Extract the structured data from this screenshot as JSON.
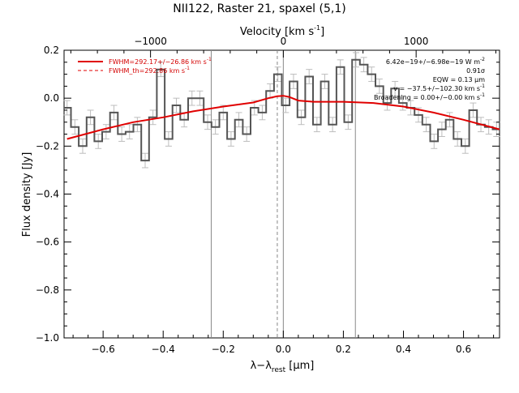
{
  "chart_data": {
    "type": "line",
    "title": "NII122, Raster 21, spaxel (5,1)",
    "xlabel": "λ−λ",
    "xlabel_sub": "rest",
    "xlabel_unit": "[μm]",
    "ylabel": "Flux density [Jy]",
    "top_axis_label": "Velocity [km s",
    "top_axis_label_sup": "-1",
    "top_axis_label_end": "]",
    "xlim": [
      -0.73,
      0.72
    ],
    "ylim": [
      -1.0,
      0.2
    ],
    "top_xlim": [
      -1651,
      1628
    ],
    "x_ticks": [
      -0.6,
      -0.4,
      -0.2,
      0.0,
      0.2,
      0.4,
      0.6
    ],
    "x_tick_labels": [
      "−0.6",
      "−0.4",
      "−0.2",
      "0.0",
      "0.2",
      "0.4",
      "0.6"
    ],
    "y_ticks": [
      -1.0,
      -0.8,
      -0.6,
      -0.4,
      -0.2,
      0.0,
      0.2
    ],
    "y_tick_labels": [
      "−1.0",
      "−0.8",
      "−0.6",
      "−0.4",
      "−0.2",
      "0.0",
      "0.2"
    ],
    "top_ticks": [
      -1000,
      0,
      1000
    ],
    "top_tick_labels": [
      "−1000",
      "0",
      "1000"
    ],
    "vertical_lines": [
      -0.24,
      -0.02,
      0.0,
      0.24
    ],
    "legend": {
      "position": "top-left",
      "entries": [
        {
          "label": "FWHM=292.17+/−26.86 km s",
          "sup": "-1",
          "style": "solid",
          "color": "#d40000"
        },
        {
          "label": "FWHM_th=292.86 km s",
          "sup": "-1",
          "style": "dashed",
          "color": "#d40000"
        }
      ]
    },
    "annotations": [
      {
        "text": "6.42e−19+/−6.98e−19 W m",
        "sup": "-2"
      },
      {
        "text": "0.91σ",
        "sup": ""
      },
      {
        "text": "EQW = 0.13 μm",
        "sup": ""
      },
      {
        "text": "v = −37.5+/−102.30 km s",
        "sup": "-1"
      },
      {
        "text": "Broadening = 0.00+/−0.00 km s",
        "sup": "-1"
      }
    ],
    "colors": {
      "data": "#555555",
      "errorbars": "#bdbdbd",
      "fit": "#e00000",
      "vlines": "#888888"
    },
    "series": [
      {
        "name": "data",
        "style": "histogram",
        "bin_width": 0.026,
        "x": [
          -0.72,
          -0.694,
          -0.668,
          -0.642,
          -0.616,
          -0.59,
          -0.564,
          -0.538,
          -0.512,
          -0.486,
          -0.46,
          -0.434,
          -0.408,
          -0.382,
          -0.356,
          -0.33,
          -0.304,
          -0.278,
          -0.252,
          -0.226,
          -0.2,
          -0.174,
          -0.148,
          -0.122,
          -0.096,
          -0.07,
          -0.044,
          -0.018,
          0.008,
          0.034,
          0.06,
          0.086,
          0.112,
          0.138,
          0.164,
          0.19,
          0.216,
          0.242,
          0.268,
          0.294,
          0.32,
          0.346,
          0.372,
          0.398,
          0.424,
          0.45,
          0.476,
          0.502,
          0.528,
          0.554,
          0.58,
          0.606,
          0.632,
          0.658,
          0.684,
          0.71
        ],
        "y": [
          -0.04,
          -0.12,
          -0.2,
          -0.08,
          -0.18,
          -0.14,
          -0.06,
          -0.15,
          -0.14,
          -0.11,
          -0.26,
          -0.08,
          0.12,
          -0.17,
          -0.03,
          -0.09,
          0.0,
          0.0,
          -0.1,
          -0.12,
          -0.06,
          -0.17,
          -0.09,
          -0.15,
          -0.04,
          -0.06,
          0.03,
          0.1,
          -0.03,
          0.07,
          -0.08,
          0.09,
          -0.11,
          0.07,
          -0.11,
          0.13,
          -0.1,
          0.16,
          0.14,
          0.1,
          0.05,
          -0.02,
          0.04,
          -0.02,
          -0.04,
          -0.07,
          -0.11,
          -0.18,
          -0.13,
          -0.09,
          -0.17,
          -0.2,
          -0.05,
          -0.11,
          -0.12,
          -0.13
        ],
        "err": [
          0.03,
          0.03,
          0.03,
          0.03,
          0.03,
          0.03,
          0.03,
          0.03,
          0.03,
          0.03,
          0.03,
          0.03,
          0.03,
          0.03,
          0.03,
          0.03,
          0.03,
          0.03,
          0.03,
          0.03,
          0.03,
          0.03,
          0.03,
          0.03,
          0.03,
          0.03,
          0.03,
          0.03,
          0.03,
          0.03,
          0.03,
          0.03,
          0.03,
          0.03,
          0.03,
          0.03,
          0.03,
          0.03,
          0.03,
          0.03,
          0.03,
          0.03,
          0.03,
          0.03,
          0.03,
          0.03,
          0.03,
          0.03,
          0.03,
          0.03,
          0.03,
          0.03,
          0.03,
          0.03,
          0.03,
          0.03
        ]
      },
      {
        "name": "fit",
        "style": "line",
        "x": [
          -0.72,
          -0.6,
          -0.5,
          -0.4,
          -0.3,
          -0.2,
          -0.1,
          -0.05,
          -0.02,
          0.0,
          0.02,
          0.05,
          0.1,
          0.2,
          0.3,
          0.4,
          0.5,
          0.6,
          0.72
        ],
        "y": [
          -0.17,
          -0.13,
          -0.1,
          -0.08,
          -0.055,
          -0.035,
          -0.018,
          0.0,
          0.008,
          0.01,
          0.005,
          -0.01,
          -0.015,
          -0.015,
          -0.02,
          -0.035,
          -0.06,
          -0.09,
          -0.13
        ]
      }
    ]
  }
}
